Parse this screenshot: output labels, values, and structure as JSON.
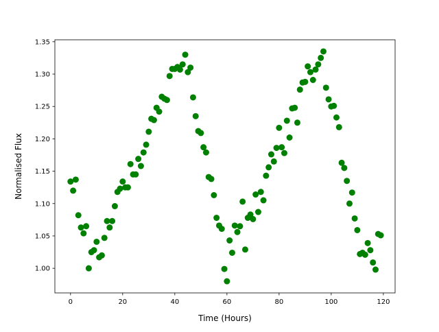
{
  "chart_data": {
    "type": "scatter",
    "title": "",
    "xlabel": "Time (Hours)",
    "ylabel": "Normalised Flux",
    "xlim": [
      -6,
      124.5
    ],
    "ylim": [
      0.962,
      1.353
    ],
    "xticks": [
      0,
      20,
      40,
      60,
      80,
      100,
      120
    ],
    "yticks": [
      1.0,
      1.05,
      1.1,
      1.15,
      1.2,
      1.25,
      1.3,
      1.35
    ],
    "ytick_labels": [
      "1.00",
      "1.05",
      "1.10",
      "1.15",
      "1.20",
      "1.25",
      "1.30",
      "1.35"
    ],
    "xtick_labels": [
      "0",
      "20",
      "40",
      "60",
      "80",
      "100",
      "120"
    ],
    "grid": false,
    "marker_color": "#008000",
    "x": [
      0,
      1,
      2,
      3,
      4,
      5,
      6,
      7,
      8,
      9,
      10,
      11,
      12,
      13,
      14,
      15,
      16,
      17,
      18,
      19,
      20,
      21,
      22,
      23,
      24,
      25,
      26,
      27,
      28,
      29,
      30,
      31,
      32,
      33,
      34,
      35,
      36,
      37,
      38,
      39,
      40,
      41,
      42,
      43,
      44,
      45,
      46,
      47,
      48,
      49,
      50,
      51,
      52,
      53,
      54,
      55,
      56,
      57,
      58,
      59,
      60,
      61,
      62,
      63,
      64,
      65,
      66,
      67,
      68,
      69,
      70,
      71,
      72,
      73,
      74,
      75,
      76,
      77,
      78,
      79,
      80,
      81,
      82,
      83,
      84,
      85,
      86,
      87,
      88,
      89,
      90,
      91,
      92,
      93,
      94,
      95,
      96,
      97,
      98,
      99,
      100,
      101,
      102,
      103,
      104,
      105,
      106,
      107,
      108,
      109,
      110,
      111,
      112,
      113,
      114,
      115,
      116,
      117,
      118,
      119
    ],
    "y": [
      1.134,
      1.12,
      1.137,
      1.082,
      1.063,
      1.054,
      1.065,
      1.0,
      1.025,
      1.028,
      1.041,
      1.017,
      1.02,
      1.047,
      1.073,
      1.063,
      1.073,
      1.096,
      1.118,
      1.123,
      1.134,
      1.125,
      1.125,
      1.161,
      1.145,
      1.145,
      1.169,
      1.158,
      1.179,
      1.191,
      1.211,
      1.231,
      1.229,
      1.248,
      1.242,
      1.265,
      1.262,
      1.26,
      1.297,
      1.308,
      1.308,
      1.311,
      1.307,
      1.315,
      1.33,
      1.303,
      1.31,
      1.264,
      1.235,
      1.212,
      1.209,
      1.187,
      1.179,
      1.141,
      1.138,
      1.113,
      1.078,
      1.066,
      1.061,
      0.999,
      0.98,
      1.043,
      1.024,
      1.066,
      1.056,
      1.065,
      1.103,
      1.029,
      1.078,
      1.083,
      1.076,
      1.114,
      1.087,
      1.118,
      1.105,
      1.143,
      1.156,
      1.176,
      1.165,
      1.186,
      1.217,
      1.187,
      1.178,
      1.228,
      1.202,
      1.247,
      1.248,
      1.225,
      1.276,
      1.287,
      1.288,
      1.312,
      1.303,
      1.291,
      1.307,
      1.315,
      1.325,
      1.335,
      1.279,
      1.261,
      1.25,
      1.251,
      1.233,
      1.218,
      1.163,
      1.155,
      1.135,
      1.1,
      1.117,
      1.077,
      1.059,
      1.022,
      1.024,
      1.021,
      1.039,
      1.028,
      1.009,
      0.998,
      1.053,
      1.051
    ]
  }
}
